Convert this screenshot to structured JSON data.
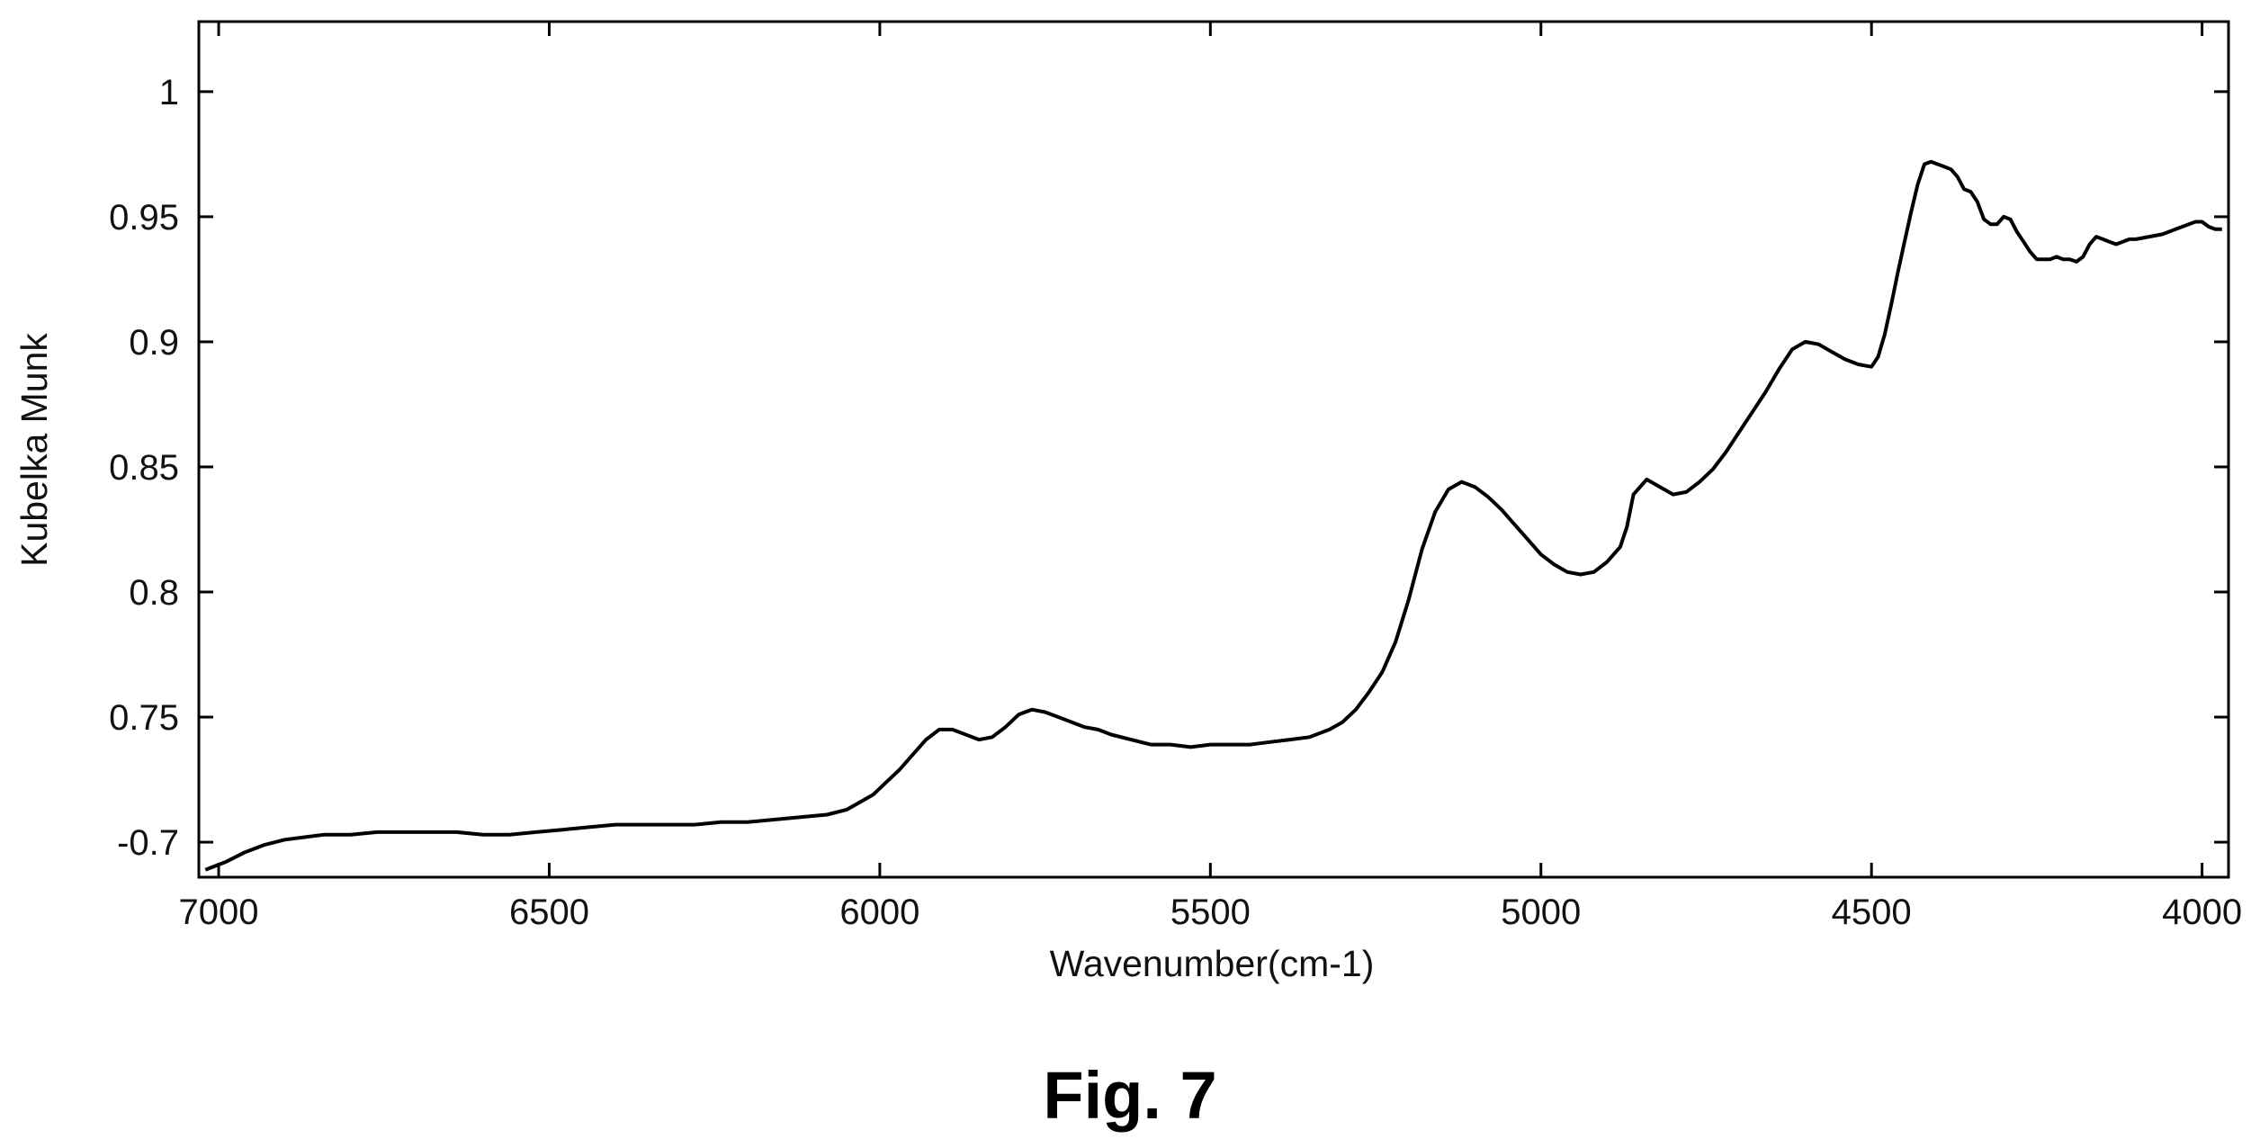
{
  "caption": "Fig. 7",
  "chart_data": {
    "type": "line",
    "title": "",
    "xlabel": "Wavenumber(cm-1)",
    "ylabel": "Kubelka Munk",
    "xlim": [
      7030,
      3960
    ],
    "ylim": [
      0.686,
      1.028
    ],
    "x_reversed": true,
    "grid": false,
    "legend": "none",
    "x_ticks": [
      {
        "value": 7000,
        "label": "7000"
      },
      {
        "value": 6500,
        "label": "6500"
      },
      {
        "value": 6000,
        "label": "6000"
      },
      {
        "value": 5500,
        "label": "5500"
      },
      {
        "value": 5000,
        "label": "5000"
      },
      {
        "value": 4500,
        "label": "4500"
      },
      {
        "value": 4000,
        "label": "4000"
      }
    ],
    "y_ticks": [
      {
        "value": 1.0,
        "label": "1"
      },
      {
        "value": 0.95,
        "label": "0.95"
      },
      {
        "value": 0.9,
        "label": "0.9"
      },
      {
        "value": 0.85,
        "label": "0.85"
      },
      {
        "value": 0.8,
        "label": "0.8"
      },
      {
        "value": 0.75,
        "label": "0.75"
      },
      {
        "value": 0.7,
        "label": "-0.7"
      }
    ],
    "series": [
      {
        "color": "#000000",
        "x": [
          7020,
          6990,
          6960,
          6930,
          6900,
          6870,
          6840,
          6800,
          6760,
          6720,
          6680,
          6640,
          6600,
          6560,
          6520,
          6480,
          6440,
          6400,
          6360,
          6320,
          6280,
          6240,
          6200,
          6160,
          6120,
          6080,
          6050,
          6030,
          6010,
          5990,
          5970,
          5950,
          5930,
          5910,
          5890,
          5870,
          5850,
          5830,
          5810,
          5790,
          5770,
          5750,
          5730,
          5710,
          5690,
          5670,
          5650,
          5620,
          5590,
          5560,
          5530,
          5500,
          5470,
          5440,
          5410,
          5380,
          5350,
          5320,
          5300,
          5280,
          5260,
          5240,
          5220,
          5200,
          5180,
          5160,
          5140,
          5120,
          5100,
          5080,
          5060,
          5040,
          5020,
          5000,
          4980,
          4960,
          4940,
          4920,
          4900,
          4880,
          4870,
          4860,
          4840,
          4820,
          4800,
          4780,
          4760,
          4740,
          4720,
          4700,
          4680,
          4660,
          4640,
          4620,
          4600,
          4580,
          4560,
          4540,
          4520,
          4500,
          4490,
          4480,
          4470,
          4460,
          4450,
          4440,
          4430,
          4420,
          4410,
          4400,
          4390,
          4380,
          4370,
          4360,
          4350,
          4340,
          4330,
          4320,
          4310,
          4300,
          4290,
          4280,
          4270,
          4260,
          4250,
          4240,
          4230,
          4220,
          4210,
          4200,
          4190,
          4180,
          4170,
          4160,
          4150,
          4140,
          4130,
          4120,
          4110,
          4100,
          4080,
          4060,
          4040,
          4020,
          4010,
          4000,
          3990,
          3980,
          3970
        ],
        "y": [
          0.689,
          0.692,
          0.696,
          0.699,
          0.701,
          0.702,
          0.703,
          0.703,
          0.704,
          0.704,
          0.704,
          0.704,
          0.703,
          0.703,
          0.704,
          0.705,
          0.706,
          0.707,
          0.707,
          0.707,
          0.707,
          0.708,
          0.708,
          0.709,
          0.71,
          0.711,
          0.713,
          0.716,
          0.719,
          0.724,
          0.729,
          0.735,
          0.741,
          0.745,
          0.745,
          0.743,
          0.741,
          0.742,
          0.746,
          0.751,
          0.753,
          0.752,
          0.75,
          0.748,
          0.746,
          0.745,
          0.743,
          0.741,
          0.739,
          0.739,
          0.738,
          0.739,
          0.739,
          0.739,
          0.74,
          0.741,
          0.742,
          0.745,
          0.748,
          0.753,
          0.76,
          0.768,
          0.78,
          0.797,
          0.817,
          0.832,
          0.841,
          0.844,
          0.842,
          0.838,
          0.833,
          0.827,
          0.821,
          0.815,
          0.811,
          0.808,
          0.807,
          0.808,
          0.812,
          0.818,
          0.826,
          0.839,
          0.845,
          0.842,
          0.839,
          0.84,
          0.844,
          0.849,
          0.856,
          0.864,
          0.872,
          0.88,
          0.889,
          0.897,
          0.9,
          0.899,
          0.896,
          0.893,
          0.891,
          0.89,
          0.894,
          0.903,
          0.915,
          0.928,
          0.94,
          0.952,
          0.963,
          0.971,
          0.972,
          0.971,
          0.97,
          0.969,
          0.966,
          0.961,
          0.96,
          0.956,
          0.949,
          0.947,
          0.947,
          0.95,
          0.949,
          0.944,
          0.94,
          0.936,
          0.933,
          0.933,
          0.933,
          0.934,
          0.933,
          0.933,
          0.932,
          0.934,
          0.939,
          0.942,
          0.941,
          0.94,
          0.939,
          0.94,
          0.941,
          0.941,
          0.942,
          0.943,
          0.945,
          0.947,
          0.948,
          0.948,
          0.946,
          0.945,
          0.945
        ]
      }
    ]
  }
}
